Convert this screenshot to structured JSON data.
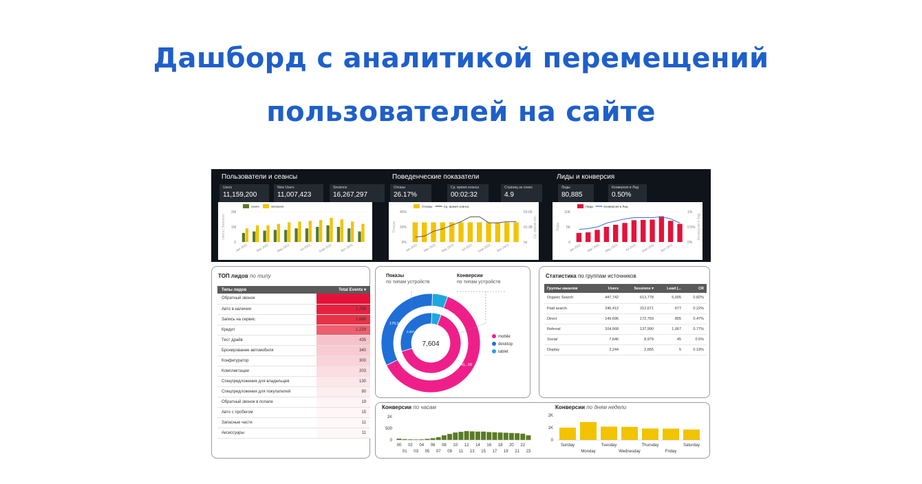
{
  "title": {
    "line1": "Дашборд с аналитикой перемещений",
    "line2": "пользователей на сайте"
  },
  "colors": {
    "title": "#1f5fc9",
    "green": "#5b7a25",
    "yellow": "#f2c300",
    "red": "#e3123b",
    "line": "#3a6fd1",
    "pink": "#ef1f8a",
    "blue": "#1f6fd6",
    "cyan": "#1ca7e0"
  },
  "sections": {
    "users": {
      "title": "Пользователи и сеансы",
      "kpis": [
        {
          "label": "Users",
          "value": "11,159,200"
        },
        {
          "label": "New Users",
          "value": "11,007,423"
        },
        {
          "label": "Sessions",
          "value": "16,267,297"
        }
      ],
      "legend": [
        "Users",
        "Sessions"
      ],
      "y_axis_title": "Users | Sessions"
    },
    "behavior": {
      "title": "Поведенческие показатели",
      "kpis": [
        {
          "label": "Отказы",
          "value": "26.17%"
        },
        {
          "label": "Ср. время сеанса",
          "value": "00:02:32"
        },
        {
          "label": "Страниц за сеанс",
          "value": "4.9"
        }
      ],
      "legend": [
        "Отказы",
        "Ср. время сеанса"
      ],
      "y_axis_title": "Отказы",
      "y2_axis_title": "Ср. время сес."
    },
    "leads": {
      "title": "Лиды и конверсия",
      "kpis": [
        {
          "label": "Лиды",
          "value": "80,885"
        },
        {
          "label": "Конверсия в Лид",
          "value": "0.50%"
        }
      ],
      "legend": [
        "Лиды",
        "Конверсия в Лид"
      ],
      "y_axis_title": "Лиды",
      "y2_axis_title": "Конверсия в Лид"
    }
  },
  "chart_data": [
    {
      "type": "bar",
      "title": "Пользователи и сеансы",
      "categories": [
        "Jan 2021",
        "Feb 2021",
        "Mar 2021",
        "Apr 2021",
        "May 2021",
        "Jun 2021",
        "Jul 2021",
        "Aug 2021",
        "Sept 2021",
        "Oct 2021",
        "Nov 2021",
        "Dec 2021"
      ],
      "x_tick_labels": [
        "Jan 2021",
        "Mar 2021",
        "May 2021",
        "Jul 2021",
        "Sept 2021",
        "Nov 2021"
      ],
      "series": [
        {
          "name": "Users",
          "values": [
            0.6,
            0.7,
            0.75,
            0.8,
            0.8,
            0.9,
            0.9,
            1.0,
            1.1,
            1.0,
            0.9,
            0.7
          ]
        },
        {
          "name": "Sessions",
          "values": [
            0.9,
            1.1,
            1.1,
            1.2,
            1.3,
            1.35,
            1.4,
            1.45,
            1.6,
            1.5,
            1.35,
            1.2
          ]
        }
      ],
      "y_tick_labels": [
        "0",
        "1M",
        "2M"
      ],
      "ylim": [
        0,
        2
      ]
    },
    {
      "type": "bar",
      "title": "Поведенческие показатели",
      "categories": [
        "Jan 2021",
        "Feb 2021",
        "Mar 2021",
        "Apr 2021",
        "May 2021",
        "Jun 2021",
        "Jul 2021",
        "Aug 2021",
        "Sept 2021",
        "Oct 2021",
        "Nov 2021",
        "Dec 2021"
      ],
      "x_tick_labels": [
        "Jan 2021",
        "Mar 2021",
        "May 2021",
        "Jul 2021",
        "Sept 2021",
        "Nov 2021"
      ],
      "series": [
        {
          "name": "Отказы",
          "values": [
            26,
            26,
            26,
            26,
            26,
            26,
            26,
            26,
            26,
            26,
            26,
            26
          ]
        },
        {
          "name": "Ср. время сеанса",
          "values": [
            0.4,
            0.5,
            0.9,
            1.1,
            1.4,
            1.7,
            2.1,
            2.1,
            1.6,
            1.6,
            1.7,
            1.7
          ]
        }
      ],
      "y_tick_labels": [
        "0%",
        "20%",
        "40%"
      ],
      "y2_tick_labels": [
        "0s",
        "01:38",
        "03:00"
      ],
      "ylim": [
        0,
        40
      ]
    },
    {
      "type": "bar",
      "title": "Лиды и конверсия",
      "categories": [
        "Jan 2021",
        "Feb 2021",
        "Mar 2021",
        "Apr 2021",
        "May 2021",
        "Jun 2021",
        "Jul 2021",
        "Aug 2021",
        "Sept 2021",
        "Oct 2021",
        "Nov 2021",
        "Dec 2021"
      ],
      "x_tick_labels": [
        "Jan 2021",
        "Mar 2021",
        "May 2021",
        "Jul 2021",
        "Sept 2021",
        "Nov 2021"
      ],
      "series": [
        {
          "name": "Лиды",
          "values": [
            3.0,
            3.2,
            4.0,
            5.0,
            5.7,
            6.3,
            7.2,
            7.3,
            7.4,
            8.5,
            7.0,
            6.0
          ]
        },
        {
          "name": "Конверсия в Лид",
          "values": [
            0.3,
            0.32,
            0.36,
            0.45,
            0.5,
            0.55,
            0.58,
            0.58,
            0.58,
            0.6,
            0.55,
            0.45
          ]
        }
      ],
      "y_tick_labels": [
        "0",
        "5K",
        "10K"
      ],
      "y2_tick_labels": [
        "0%",
        "0.5%",
        "1%"
      ],
      "ylim": [
        0,
        10
      ]
    },
    {
      "type": "pie",
      "title": "Показы / Конверсии",
      "subtitle": "по типам устройств",
      "center_value": "7,604",
      "categories": [
        "mobile",
        "desktop",
        "tablet"
      ],
      "outer": {
        "name": "Показы",
        "values": [
          0.62,
          0.33,
          0.05
        ]
      },
      "inner": {
        "name": "Конверсии",
        "values": [
          0.65,
          0.3,
          0.05
        ]
      },
      "labels": [
        "176,044",
        "840,..08",
        "2,357"
      ]
    },
    {
      "type": "bar",
      "title": "Конверсии по часам",
      "categories": [
        "00",
        "01",
        "02",
        "03",
        "04",
        "05",
        "06",
        "07",
        "08",
        "09",
        "10",
        "11",
        "12",
        "13",
        "14",
        "15",
        "16",
        "17",
        "18",
        "19",
        "20",
        "21",
        "22",
        "23"
      ],
      "values": [
        60,
        40,
        30,
        25,
        30,
        50,
        80,
        120,
        200,
        260,
        320,
        350,
        380,
        370,
        360,
        360,
        340,
        330,
        320,
        310,
        300,
        290,
        270,
        200
      ],
      "y_tick_labels": [
        "0",
        "500",
        "1K"
      ],
      "ylim": [
        0,
        1000
      ]
    },
    {
      "type": "bar",
      "title": "Конверсии по дням недели",
      "categories": [
        "Sunday",
        "Monday",
        "Tuesday",
        "Wednesday",
        "Thursday",
        "Friday",
        "Saturday"
      ],
      "values": [
        1000,
        1450,
        1080,
        1060,
        930,
        920,
        850
      ],
      "y_tick_labels": [
        "0",
        "1K",
        "2K"
      ],
      "ylim": [
        0,
        2000
      ]
    }
  ],
  "top_leads": {
    "title": "ТОП лидов",
    "title_italic": "по типу",
    "col_type": "Типы лидов",
    "col_events": "Total Events",
    "rows": [
      {
        "name": "Обратный звонок",
        "value": ""
      },
      {
        "name": "Авто в наличии",
        "value": "1,756"
      },
      {
        "name": "Запись на сервис",
        "value": "1,666"
      },
      {
        "name": "Кредит",
        "value": "1,229"
      },
      {
        "name": "Тест драйв",
        "value": "435"
      },
      {
        "name": "Бронирование автомобиля",
        "value": "340"
      },
      {
        "name": "Конфигуратор",
        "value": "300"
      },
      {
        "name": "Комплектации",
        "value": "203"
      },
      {
        "name": "Спецпредложения для владельцев",
        "value": "130"
      },
      {
        "name": "Спецпредложения для покупателей",
        "value": "90"
      },
      {
        "name": "Обратный звонок в попапе",
        "value": "19"
      },
      {
        "name": "Авто с пробегом",
        "value": "15"
      },
      {
        "name": "Запасные части",
        "value": "11"
      },
      {
        "name": "Аксессуары",
        "value": "11"
      }
    ]
  },
  "devices": {
    "left_title": "Показы",
    "left_sub": "по типам устройств",
    "right_title": "Конверсии",
    "right_sub": "по типам устройств"
  },
  "sources": {
    "title": "Статистика",
    "title_rest": "по группам источников",
    "headers": [
      "Группы каналов",
      "Users",
      "Sessions ▾",
      "Lead (...",
      "CR"
    ],
    "rows": [
      [
        "Organic Search",
        "447,742",
        "613,778",
        "5,005",
        "0.82%"
      ],
      [
        "Paid search",
        "246,412",
        "312,671",
        "677",
        "0.22%"
      ],
      [
        "Direct",
        "149,696",
        "172,759",
        "805",
        "0.47%"
      ],
      [
        "Referral",
        "104,668",
        "137,990",
        "1,067",
        "0.77%"
      ],
      [
        "Social",
        "7,646",
        "8,979",
        "45",
        "0.5%"
      ],
      [
        "Display",
        "2,244",
        "2,655",
        "5",
        "0.19%"
      ]
    ]
  },
  "hours": {
    "title": "Конверсии",
    "title_italic": "по часам"
  },
  "weekdays": {
    "title": "Конверсии",
    "title_italic": "по дням недели"
  }
}
